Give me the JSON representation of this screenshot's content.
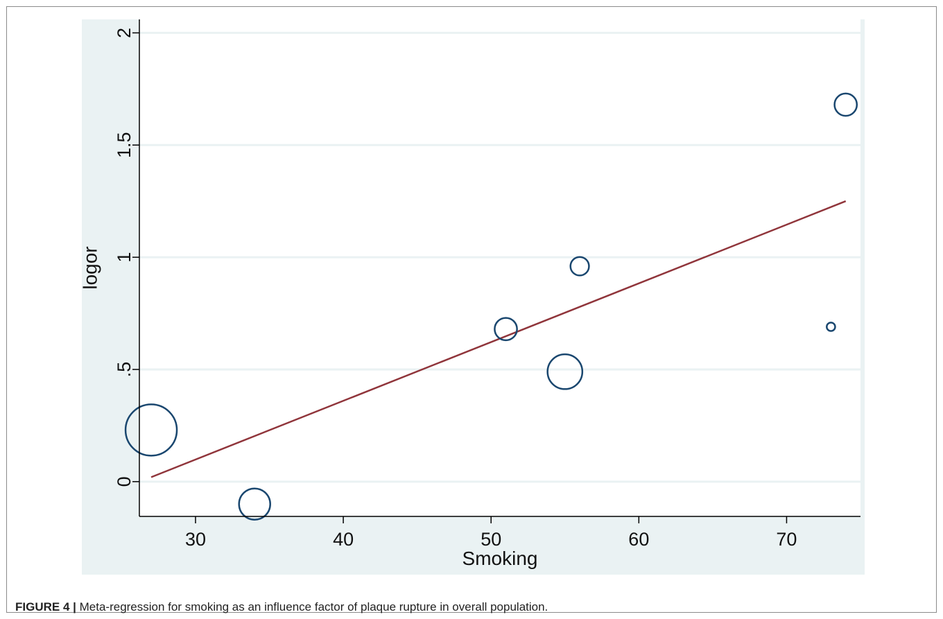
{
  "figure": {
    "label": "FIGURE 4 |",
    "caption": "Meta-regression for smoking as an influence factor of plaque rupture in overall population."
  },
  "colors": {
    "plot_background": "#eaf2f3",
    "inner_background": "#ffffff",
    "gridline": "#eaf2f3",
    "marker": "#1a476f",
    "fit_line": "#90353b",
    "axis": "#000000"
  },
  "chart_data": {
    "type": "scatter",
    "xlabel": "Smoking",
    "ylabel": "logor",
    "xlim": [
      26.2,
      75
    ],
    "ylim": [
      -0.155,
      2.06
    ],
    "x_ticks": [
      30,
      40,
      50,
      60,
      70
    ],
    "y_ticks": [
      0,
      0.5,
      1,
      1.5,
      2
    ],
    "x_tick_labels": [
      "30",
      "40",
      "50",
      "60",
      "70"
    ],
    "y_tick_labels": [
      "0",
      ".5",
      "1",
      "1.5",
      "2"
    ],
    "grid": true,
    "points": [
      {
        "x": 27,
        "y": 0.23,
        "weight": 1.0
      },
      {
        "x": 34,
        "y": -0.1,
        "weight": 0.37
      },
      {
        "x": 51,
        "y": 0.68,
        "weight": 0.19
      },
      {
        "x": 55,
        "y": 0.49,
        "weight": 0.46
      },
      {
        "x": 56,
        "y": 0.96,
        "weight": 0.13
      },
      {
        "x": 73,
        "y": 0.69,
        "weight": 0.027
      },
      {
        "x": 74,
        "y": 1.68,
        "weight": 0.19
      }
    ],
    "fit_line": {
      "x": [
        27,
        74
      ],
      "y": [
        0.02,
        1.25
      ]
    }
  }
}
